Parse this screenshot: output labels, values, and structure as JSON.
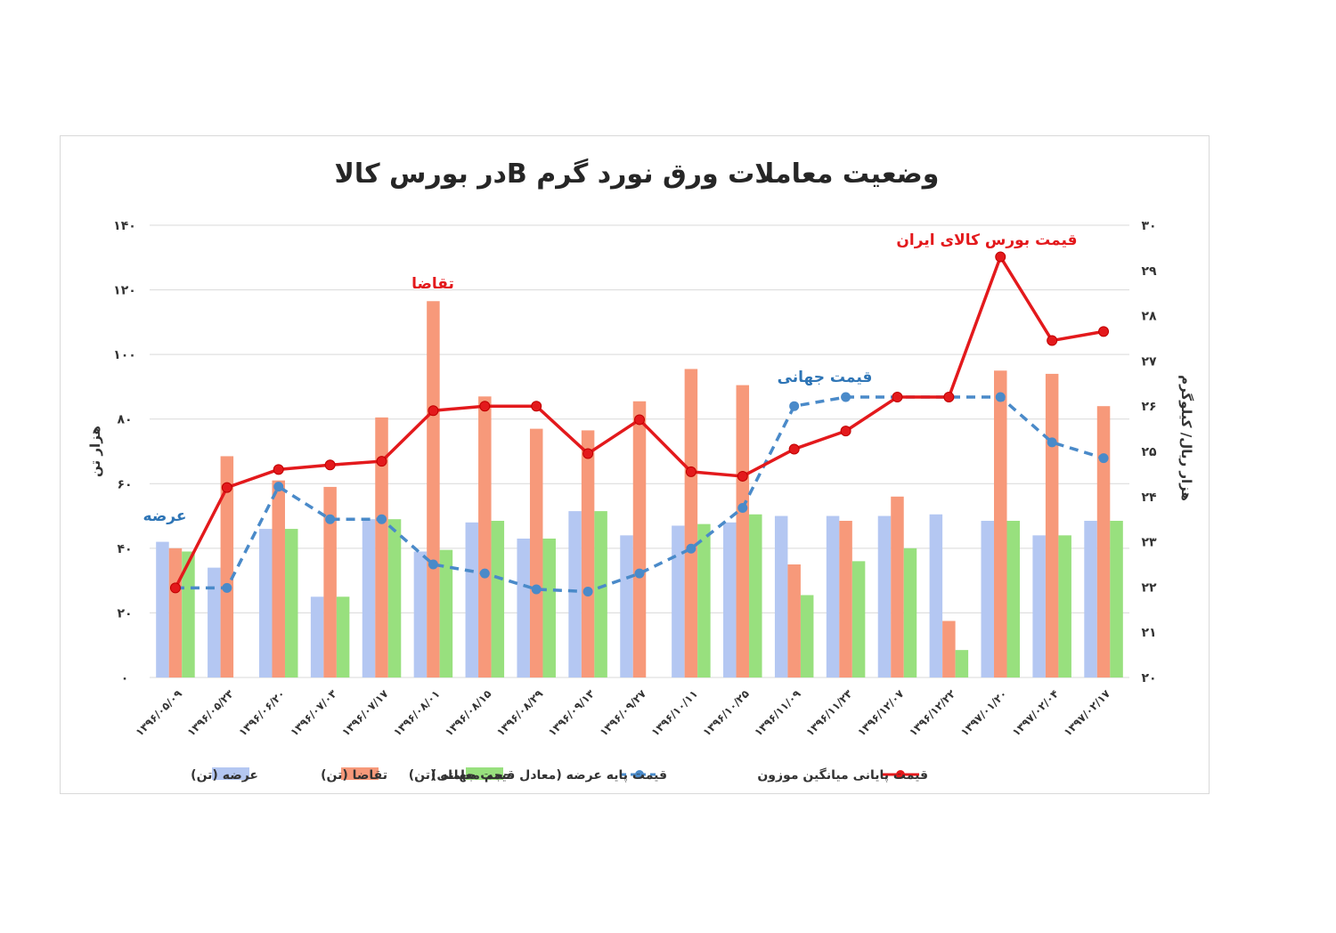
{
  "chart_data": {
    "type": "bar",
    "title": "وضعیت معاملات ورق نورد گرم  Bدر بورس کالا",
    "ylabel_left": "هزار تن",
    "ylabel_right": "هزار ریال/ کیلوگرم",
    "ylim_left": [
      0,
      140
    ],
    "ylim_right": [
      20,
      30
    ],
    "left_ticks": [
      "۰",
      "۲۰",
      "۴۰",
      "۶۰",
      "۸۰",
      "۱۰۰",
      "۱۲۰",
      "۱۴۰"
    ],
    "right_ticks": [
      "۲۰",
      "۲۱",
      "۲۲",
      "۲۳",
      "۲۴",
      "۲۵",
      "۲۶",
      "۲۷",
      "۲۸",
      "۲۹",
      "۳۰"
    ],
    "grid": true,
    "legend_position": "bottom",
    "categories": [
      "۱۳۹۶/۰۵/۰۹",
      "۱۳۹۶/۰۵/۲۳",
      "۱۳۹۶/۰۶/۲۰",
      "۱۳۹۶/۰۷/۰۳",
      "۱۳۹۶/۰۷/۱۷",
      "۱۳۹۶/۰۸/۰۱",
      "۱۳۹۶/۰۸/۱۵",
      "۱۳۹۶/۰۸/۲۹",
      "۱۳۹۶/۰۹/۱۳",
      "۱۳۹۶/۰۹/۲۷",
      "۱۳۹۶/۱۰/۱۱",
      "۱۳۹۶/۱۰/۲۵",
      "۱۳۹۶/۱۱/۰۹",
      "۱۳۹۶/۱۱/۲۳",
      "۱۳۹۶/۱۲/۰۷",
      "۱۳۹۶/۱۲/۲۲",
      "۱۳۹۷/۰۱/۲۰",
      "۱۳۹۷/۰۲/۰۴",
      "۱۳۹۷/۰۲/۱۷"
    ],
    "series": [
      {
        "name": "عرضه (تن)",
        "axis": "left",
        "kind": "bar",
        "color": "#b4c7f2",
        "values": [
          42,
          34,
          46,
          25,
          49,
          39,
          48,
          43,
          51.5,
          44,
          47,
          48,
          50,
          50,
          50,
          50.5,
          48.5,
          44,
          48.5
        ]
      },
      {
        "name": "تقاضا (تن)",
        "axis": "left",
        "kind": "bar",
        "color": "#f7997a",
        "values": [
          40,
          68.5,
          61,
          59,
          80.5,
          116.5,
          87,
          77,
          76.5,
          85.5,
          95.5,
          90.5,
          35,
          48.5,
          56,
          17.5,
          95,
          94,
          84
        ]
      },
      {
        "name": "حجم معامله (تن)",
        "axis": "left",
        "kind": "bar",
        "color": "#98e07e",
        "values": [
          39,
          0,
          46,
          25,
          49,
          39.5,
          48.5,
          43,
          51.5,
          0,
          47.5,
          50.5,
          25.5,
          36,
          40,
          8.5,
          48.5,
          44,
          48.5
        ]
      },
      {
        "name": "قیمت پایه عرضه (معادل قیمت جهانی)",
        "axis": "right",
        "kind": "line",
        "color": "#4a8ac9",
        "dashed": true,
        "values": [
          21.98,
          21.98,
          24.22,
          23.5,
          23.5,
          22.5,
          22.3,
          21.95,
          21.9,
          22.3,
          22.85,
          23.75,
          26.0,
          26.2,
          26.2,
          26.2,
          26.2,
          25.2,
          24.85
        ]
      },
      {
        "name": "قیمت پایانی میانگین موزون",
        "axis": "right",
        "kind": "line",
        "color": "#e3191c",
        "values": [
          21.98,
          24.2,
          24.6,
          24.7,
          24.78,
          25.9,
          26.0,
          26.0,
          24.95,
          25.7,
          24.55,
          24.45,
          25.05,
          25.45,
          26.2,
          26.2,
          29.3,
          27.45,
          27.65
        ]
      }
    ],
    "annotations": [
      {
        "text": "عرضه",
        "color": "#2e75b6"
      },
      {
        "text": "تقاضا",
        "color": "#e3191c"
      },
      {
        "text": "قیمت جهانی",
        "color": "#2e75b6"
      },
      {
        "text": "قیمت بورس کالای ایران",
        "color": "#e3191c"
      }
    ]
  }
}
